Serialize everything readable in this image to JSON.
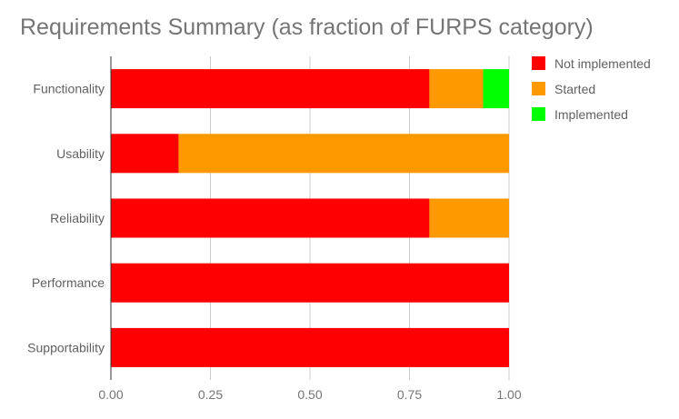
{
  "chart_data": {
    "type": "bar",
    "orientation": "horizontal",
    "stacked": true,
    "title": "Requirements Summary (as fraction of FURPS category)",
    "categories": [
      "Functionality",
      "Usability",
      "Reliability",
      "Performance",
      "Supportability"
    ],
    "series": [
      {
        "name": "Not implemented",
        "color": "#ff0000",
        "values": [
          0.8,
          0.17,
          0.8,
          1.0,
          1.0
        ]
      },
      {
        "name": "Started",
        "color": "#ff9900",
        "values": [
          0.135,
          0.83,
          0.2,
          0.0,
          0.0
        ]
      },
      {
        "name": "Implemented",
        "color": "#00ff00",
        "values": [
          0.065,
          0.0,
          0.0,
          0.0,
          0.0
        ]
      }
    ],
    "xlim": [
      0,
      1
    ],
    "xticks": [
      "0.00",
      "0.25",
      "0.50",
      "0.75",
      "1.00"
    ],
    "grid": true,
    "legend_position": "right"
  }
}
